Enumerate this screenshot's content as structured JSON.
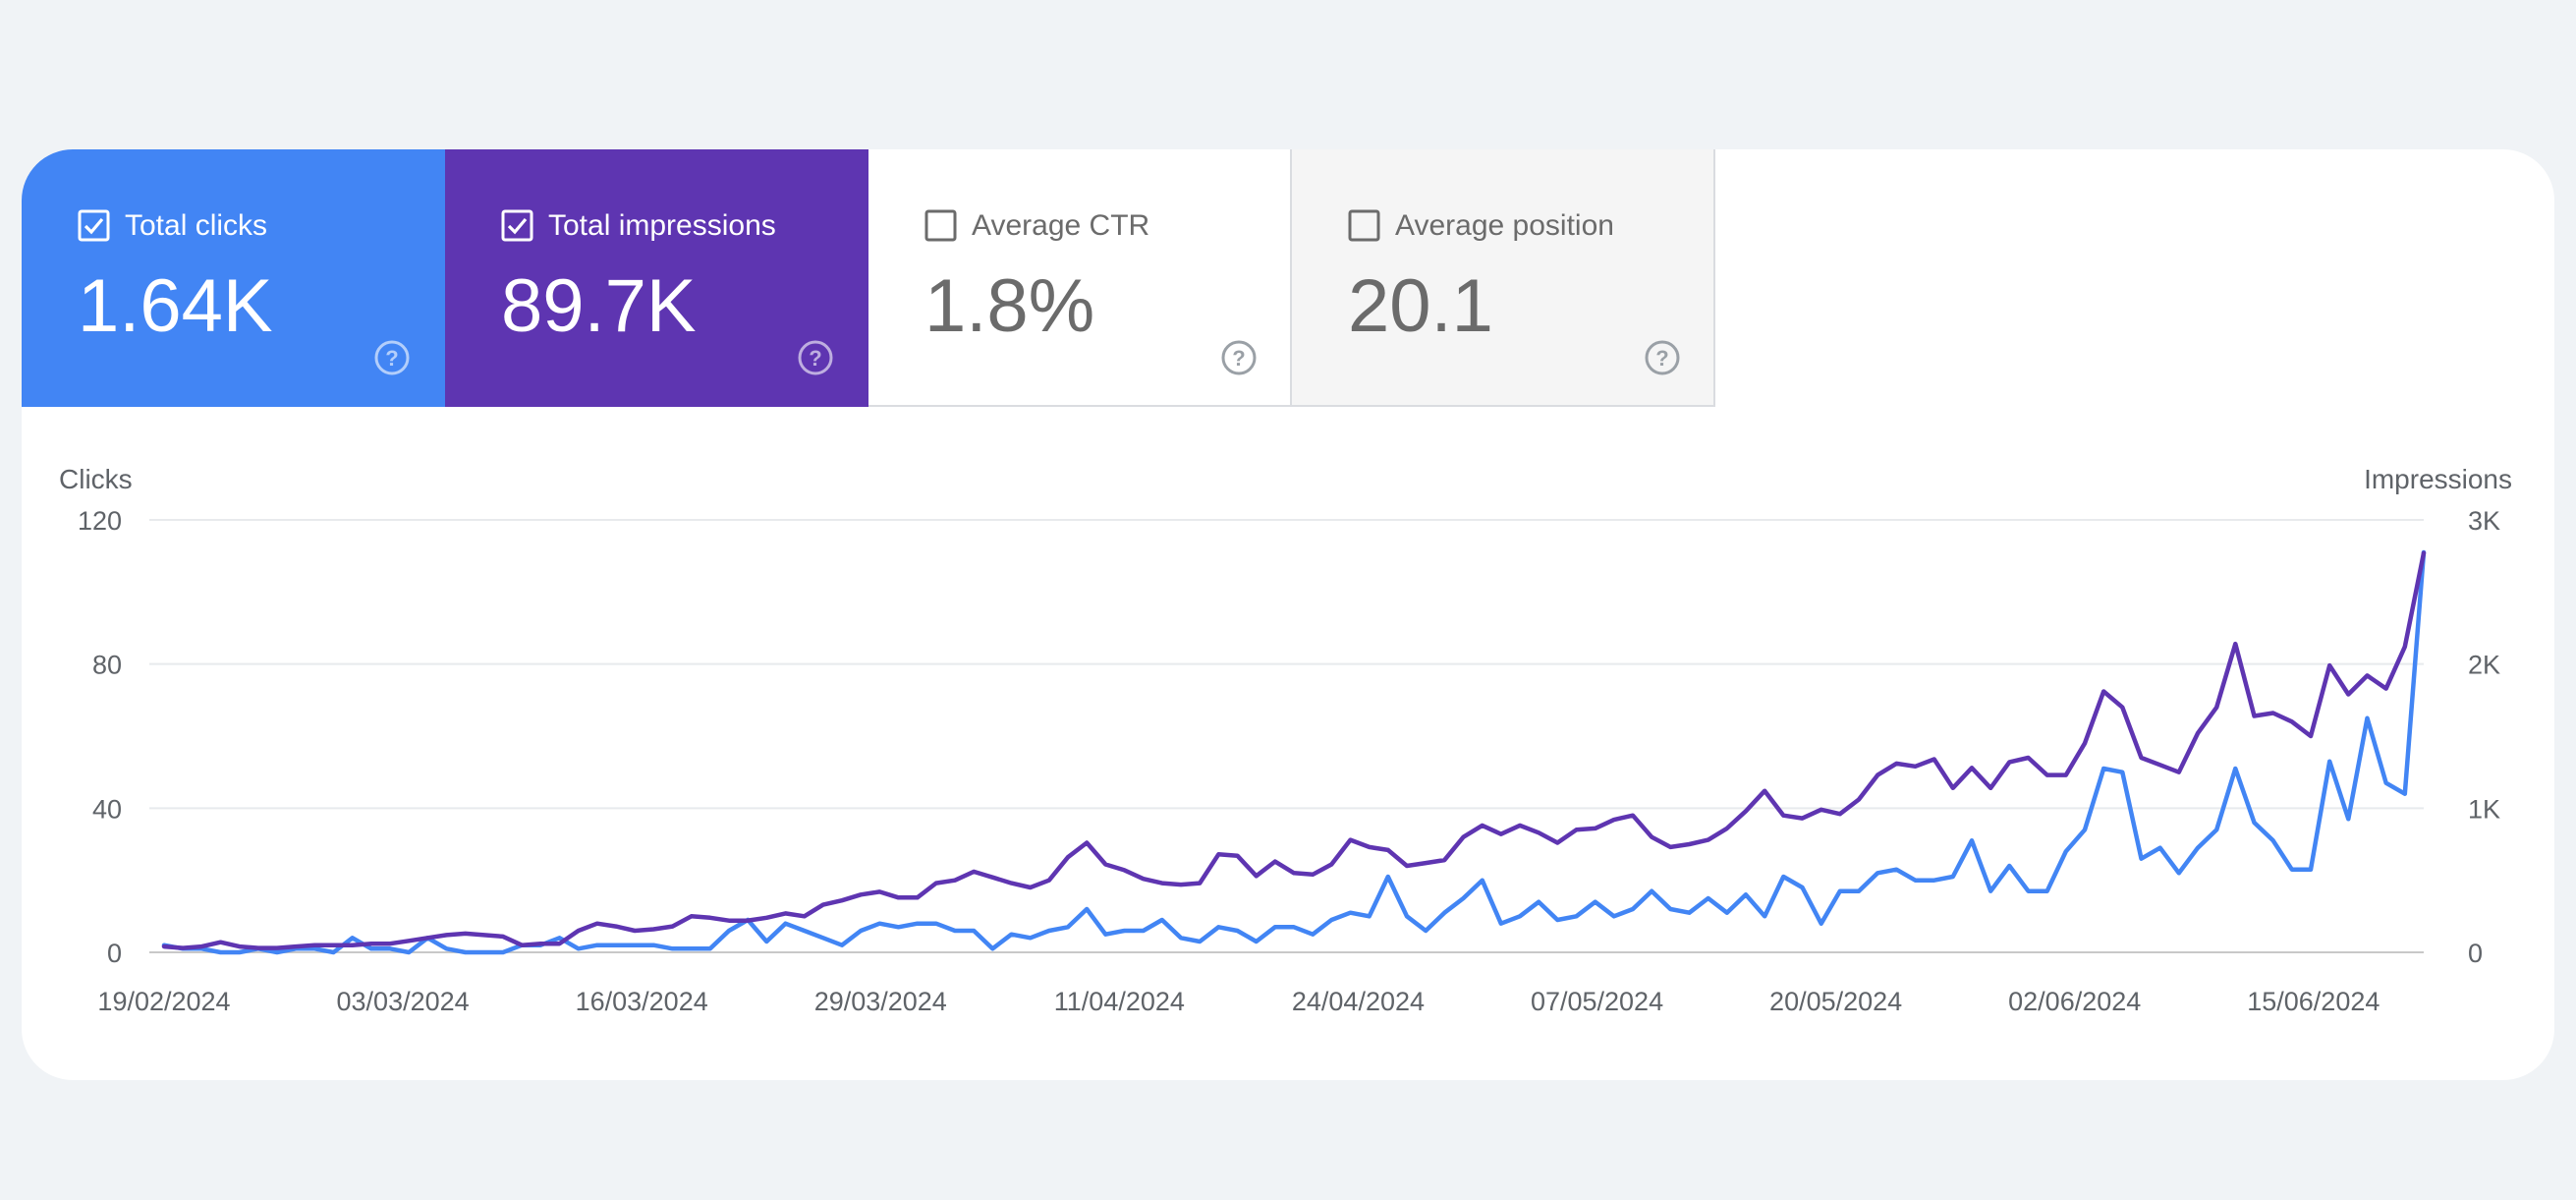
{
  "metrics": [
    {
      "label": "Total clicks",
      "value": "1.64K",
      "checked": true,
      "color": "#4285f4"
    },
    {
      "label": "Total impressions",
      "value": "89.7K",
      "checked": true,
      "color": "#5e35b1"
    },
    {
      "label": "Average CTR",
      "value": "1.8%",
      "checked": false,
      "color": "#ffffff"
    },
    {
      "label": "Average position",
      "value": "20.1",
      "checked": false,
      "color": "#f5f5f5"
    }
  ],
  "chart_data": {
    "type": "line",
    "ylabel_left": "Clicks",
    "ylabel_right": "Impressions",
    "yticks_left": [
      "0",
      "40",
      "80",
      "120"
    ],
    "yticks_right": [
      "0",
      "1K",
      "2K",
      "3K"
    ],
    "ylim_left": [
      0,
      120
    ],
    "ylim_right": [
      0,
      3000
    ],
    "xticks": [
      "19/02/2024",
      "03/03/2024",
      "16/03/2024",
      "29/03/2024",
      "11/04/2024",
      "24/04/2024",
      "07/05/2024",
      "20/05/2024",
      "02/06/2024",
      "15/06/2024"
    ],
    "x_range": [
      "19/02/2024",
      "21/06/2024"
    ],
    "grid": true,
    "series": [
      {
        "name": "Total clicks",
        "axis": "left",
        "color": "#4285f4",
        "values": [
          2,
          1,
          1,
          0,
          0,
          1,
          0,
          1,
          1,
          0,
          4,
          1,
          1,
          0,
          4,
          1,
          0,
          0,
          0,
          2,
          2,
          4,
          1,
          2,
          2,
          2,
          2,
          1,
          1,
          1,
          6,
          9,
          3,
          8,
          6,
          4,
          2,
          6,
          8,
          7,
          8,
          8,
          6,
          6,
          1,
          5,
          4,
          6,
          7,
          12,
          5,
          6,
          6,
          9,
          4,
          3,
          7,
          6,
          3,
          7,
          7,
          5,
          9,
          11,
          10,
          21,
          10,
          6,
          11,
          15,
          20,
          8,
          10,
          14,
          9,
          10,
          14,
          10,
          12,
          17,
          12,
          11,
          15,
          11,
          16,
          10,
          21,
          18,
          8,
          17,
          17,
          22,
          23,
          20,
          20,
          21,
          31,
          17,
          24,
          17,
          17,
          28,
          34,
          51,
          50,
          26,
          29,
          22,
          29,
          34,
          51,
          36,
          31,
          23,
          23,
          53,
          37,
          65,
          47,
          44,
          111
        ]
      },
      {
        "name": "Total impressions",
        "axis": "right",
        "color": "#5e35b1",
        "values": [
          40,
          30,
          40,
          70,
          40,
          30,
          30,
          40,
          50,
          50,
          50,
          60,
          60,
          80,
          100,
          120,
          130,
          120,
          110,
          50,
          60,
          60,
          150,
          200,
          180,
          150,
          160,
          180,
          250,
          240,
          220,
          220,
          240,
          270,
          250,
          330,
          360,
          400,
          420,
          380,
          380,
          480,
          500,
          560,
          520,
          480,
          450,
          500,
          660,
          760,
          610,
          570,
          510,
          480,
          470,
          480,
          680,
          670,
          530,
          630,
          550,
          540,
          610,
          780,
          730,
          710,
          600,
          620,
          640,
          800,
          880,
          820,
          880,
          830,
          760,
          850,
          860,
          920,
          950,
          800,
          730,
          750,
          780,
          860,
          980,
          1120,
          950,
          930,
          990,
          960,
          1060,
          1230,
          1310,
          1290,
          1340,
          1140,
          1280,
          1140,
          1320,
          1350,
          1230,
          1230,
          1450,
          1810,
          1700,
          1350,
          1300,
          1250,
          1520,
          1700,
          2140,
          1640,
          1660,
          1600,
          1500,
          1990,
          1790,
          1920,
          1830,
          2120,
          2770
        ]
      }
    ]
  }
}
